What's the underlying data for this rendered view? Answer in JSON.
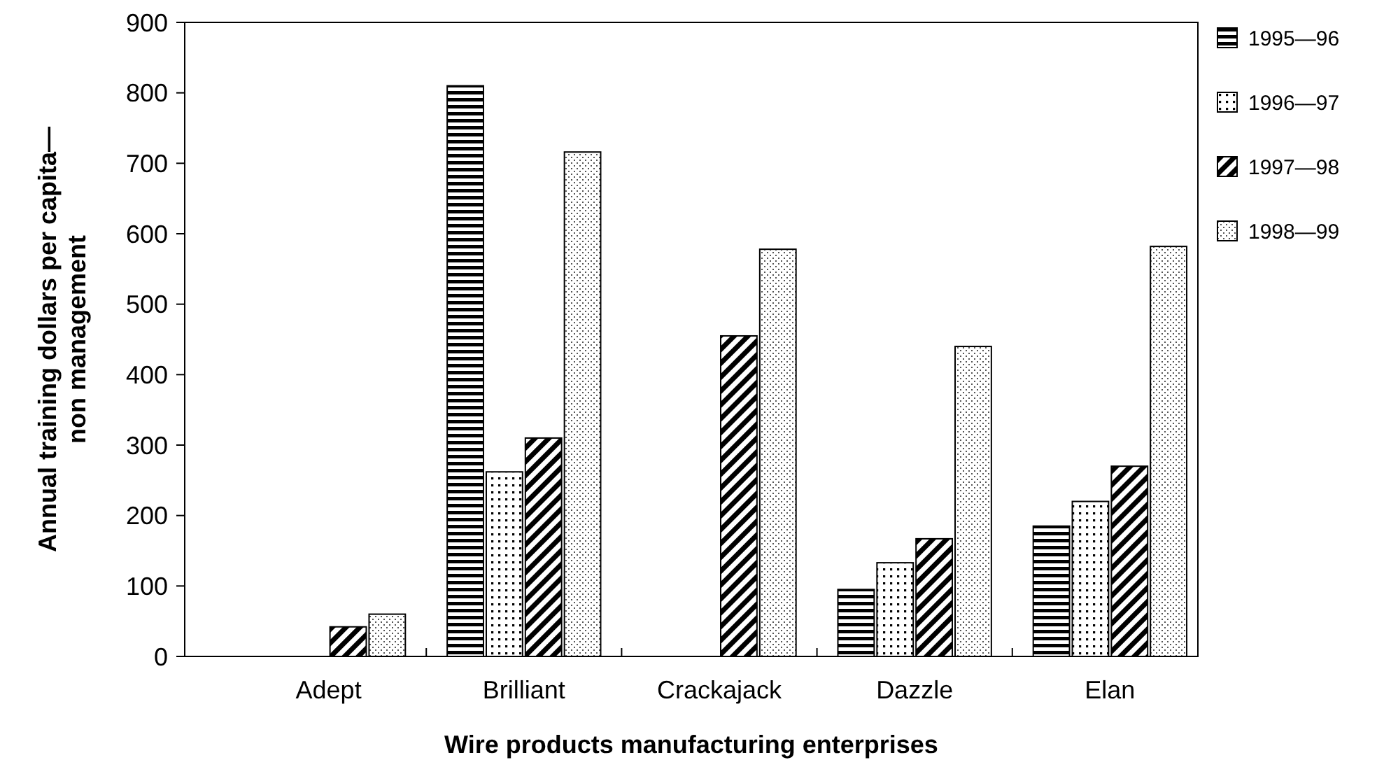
{
  "chart_data": {
    "type": "bar",
    "xlabel": "Wire products manufacturing enterprises",
    "ylabel": "Annual training dollars per capita—\nnon management",
    "categories": [
      "Adept",
      "Brilliant",
      "Crackajack",
      "Dazzle",
      "Elan"
    ],
    "series": [
      {
        "name": "1995—96",
        "color": "#000000",
        "values": [
          null,
          810,
          null,
          95,
          185
        ]
      },
      {
        "name": "1996—97",
        "color": "#000000",
        "values": [
          null,
          262,
          null,
          133,
          220
        ]
      },
      {
        "name": "1997—98",
        "color": "#000000",
        "values": [
          42,
          310,
          455,
          167,
          270
        ]
      },
      {
        "name": "1998—99",
        "color": "#000000",
        "values": [
          60,
          716,
          578,
          440,
          582
        ]
      }
    ],
    "ylim": [
      0,
      900
    ],
    "yticks": [
      0,
      100,
      200,
      300,
      400,
      500,
      600,
      700,
      800,
      900
    ],
    "grid": false,
    "legend": "right"
  }
}
